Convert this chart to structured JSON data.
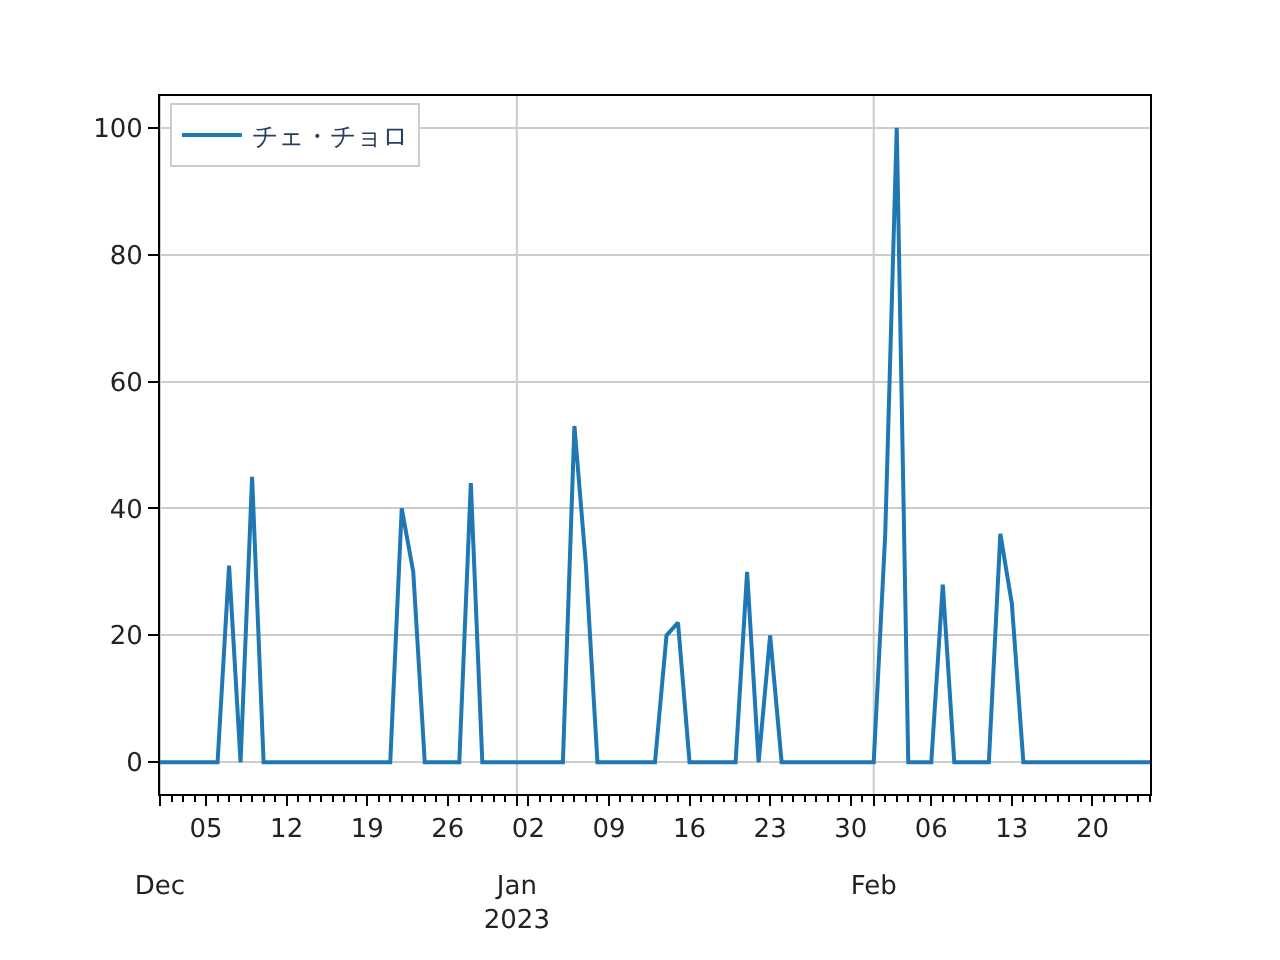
{
  "chart_data": {
    "type": "line",
    "x": [
      "2022-12-01",
      "2022-12-06",
      "2022-12-07",
      "2022-12-08",
      "2022-12-09",
      "2022-12-10",
      "2022-12-21",
      "2022-12-22",
      "2022-12-23",
      "2022-12-24",
      "2022-12-27",
      "2022-12-28",
      "2022-12-29",
      "2023-01-05",
      "2023-01-06",
      "2023-01-07",
      "2023-01-08",
      "2023-01-13",
      "2023-01-14",
      "2023-01-15",
      "2023-01-16",
      "2023-01-20",
      "2023-01-21",
      "2023-01-22",
      "2023-01-23",
      "2023-01-24",
      "2023-02-01",
      "2023-02-02",
      "2023-02-03",
      "2023-02-04",
      "2023-02-06",
      "2023-02-07",
      "2023-02-08",
      "2023-02-11",
      "2023-02-12",
      "2023-02-13",
      "2023-02-14",
      "2023-02-25"
    ],
    "series": [
      {
        "name": "チェ・チョロ",
        "color": "#1f77b4",
        "values": [
          0,
          0,
          31,
          0,
          45,
          0,
          0,
          40,
          30,
          0,
          0,
          44,
          0,
          0,
          53,
          31,
          0,
          0,
          20,
          22,
          0,
          0,
          30,
          0,
          20,
          0,
          0,
          36,
          100,
          0,
          0,
          28,
          0,
          0,
          36,
          25,
          0,
          0
        ]
      }
    ],
    "xlim": [
      "2022-12-01",
      "2023-02-25"
    ],
    "xticks": [
      {
        "value": "2022-12-01",
        "label": null
      },
      {
        "value": "2022-12-05",
        "label": "05"
      },
      {
        "value": "2022-12-12",
        "label": "12"
      },
      {
        "value": "2022-12-19",
        "label": "19"
      },
      {
        "value": "2022-12-26",
        "label": "26"
      },
      {
        "value": "2023-01-01",
        "label": null
      },
      {
        "value": "2023-01-02",
        "label": "02"
      },
      {
        "value": "2023-01-09",
        "label": "09"
      },
      {
        "value": "2023-01-16",
        "label": "16"
      },
      {
        "value": "2023-01-23",
        "label": "23"
      },
      {
        "value": "2023-01-30",
        "label": "30"
      },
      {
        "value": "2023-02-01",
        "label": null
      },
      {
        "value": "2023-02-06",
        "label": "06"
      },
      {
        "value": "2023-02-13",
        "label": "13"
      },
      {
        "value": "2023-02-20",
        "label": "20"
      }
    ],
    "x2lim": [
      "2022-12-01",
      "2023-02-25"
    ],
    "x2ticks": [
      {
        "value": "2022-12-01",
        "label": "Dec"
      },
      {
        "value": "2023-01-01",
        "label": "Jan\n2023"
      },
      {
        "value": "2023-02-01",
        "label": "Feb"
      }
    ],
    "ylim": [
      -5,
      105
    ],
    "yticks": [
      0,
      20,
      40,
      60,
      80,
      100
    ],
    "grid": true,
    "legend": "top left",
    "marker": "none",
    "line_style": "solid"
  }
}
